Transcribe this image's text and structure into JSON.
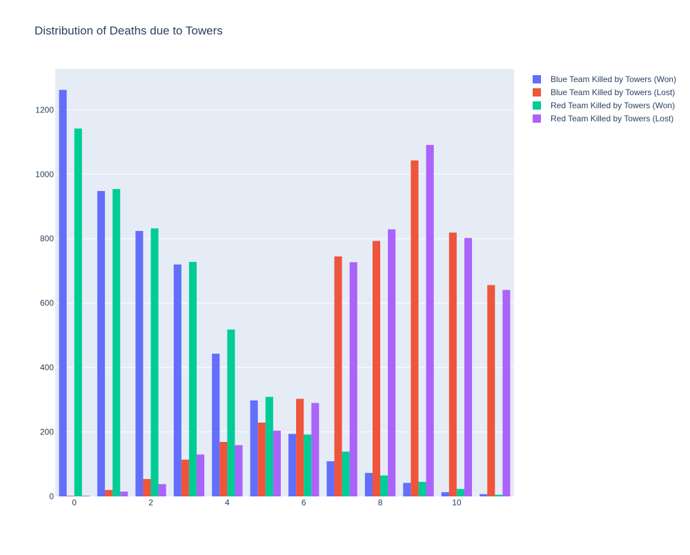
{
  "chart_data": {
    "type": "bar",
    "title": "Distribution of Deaths due to Towers",
    "xlabel": "",
    "ylabel": "",
    "x": [
      0,
      1,
      2,
      3,
      4,
      5,
      6,
      7,
      8,
      9,
      10,
      11
    ],
    "xlim": [
      -0.5,
      11.5
    ],
    "ylim": [
      0,
      1327
    ],
    "x_ticks": [
      0,
      2,
      4,
      6,
      8,
      10
    ],
    "y_ticks": [
      0,
      200,
      400,
      600,
      800,
      1000,
      1200
    ],
    "grid": true,
    "legend_position": "top-right",
    "background_color": "#e5ecf6",
    "series": [
      {
        "name": "Blue Team Killed by Towers (Won)",
        "color": "#636efa",
        "values": [
          1262,
          948,
          824,
          720,
          443,
          298,
          194,
          109,
          73,
          42,
          13,
          7
        ]
      },
      {
        "name": "Blue Team Killed by Towers (Lost)",
        "color": "#ef553b",
        "values": [
          2,
          20,
          54,
          114,
          169,
          229,
          303,
          745,
          793,
          1043,
          819,
          656
        ]
      },
      {
        "name": "Red Team Killed by Towers (Won)",
        "color": "#00cc96",
        "values": [
          1142,
          954,
          832,
          728,
          518,
          309,
          192,
          139,
          65,
          45,
          23,
          5
        ]
      },
      {
        "name": "Red Team Killed by Towers (Lost)",
        "color": "#ab63fa",
        "values": [
          2,
          15,
          38,
          130,
          159,
          204,
          290,
          727,
          829,
          1091,
          802,
          641
        ]
      }
    ]
  }
}
